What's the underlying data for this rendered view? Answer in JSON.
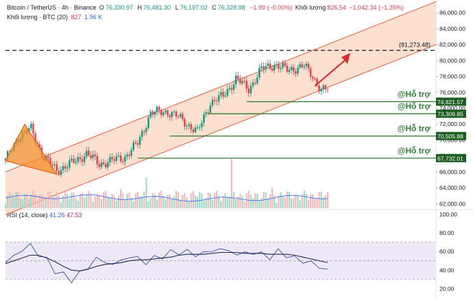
{
  "header": {
    "symbol": "Bitcoin / TetherUS · 4h · Binance",
    "ohlc": {
      "o_label": "O",
      "o": "76,330.97",
      "h_label": "H",
      "h": "76,481.30",
      "l_label": "L",
      "l": "76,197.02",
      "c_label": "C",
      "c": "76,328.98",
      "change": "−1.99 (−0.00%)"
    },
    "volume_label": "Khối lượng",
    "volume_value": "826.54",
    "volume_change": "−1,042.34 (−1.35%)",
    "volume_ma_label": "Khối lượng · BTC (20)",
    "volume_ma_v1": "827",
    "volume_ma_v2": "1.96 K"
  },
  "rsi_legend": {
    "label": "RSI (14, close)",
    "v1": "41.26",
    "v2": "47.53"
  },
  "colors": {
    "up": "#089981",
    "down": "#f23645",
    "channel_fill": "#f9d5c0",
    "channel_line": "#e05a3a",
    "support": "#1b6b1b",
    "triangle": "#f28c28",
    "rsi_line": "#1f3a93",
    "rsi_band": "#ede7f6",
    "arrow": "#d32f2f"
  },
  "chart_data": [
    {
      "type": "candlestick",
      "title": "Bitcoin / TetherUS · 4h · Binance",
      "y_axis_ticks": [
        62000,
        64000,
        66000,
        68000,
        70000,
        72000,
        74000,
        76000,
        78000,
        80000,
        82000,
        84000,
        86000
      ],
      "y_tick_labels": [
        "62,000.00",
        "64,000.00",
        "66,000.00",
        "68,000.00",
        "70,000.00",
        "72,000.00",
        "74,000.00",
        "76,000.00",
        "78,000.00",
        "80,000.00",
        "82,000.00",
        "84,000.00",
        "86,000.00"
      ],
      "ylim": [
        61000,
        87600
      ],
      "n_candles": 152,
      "close_path_anchors": [
        [
          0,
          67400
        ],
        [
          6,
          70400
        ],
        [
          12,
          71400
        ],
        [
          18,
          67800
        ],
        [
          24,
          66200
        ],
        [
          30,
          66900
        ],
        [
          38,
          68300
        ],
        [
          44,
          67000
        ],
        [
          50,
          67400
        ],
        [
          56,
          67900
        ],
        [
          62,
          69600
        ],
        [
          68,
          73400
        ],
        [
          76,
          73600
        ],
        [
          82,
          72700
        ],
        [
          90,
          71000
        ],
        [
          96,
          74700
        ],
        [
          102,
          75500
        ],
        [
          108,
          77700
        ],
        [
          114,
          76400
        ],
        [
          120,
          78900
        ],
        [
          126,
          79500
        ],
        [
          132,
          78800
        ],
        [
          140,
          79300
        ],
        [
          144,
          78000
        ],
        [
          148,
          76300
        ],
        [
          151,
          76330
        ]
      ],
      "current_close": 76328.98,
      "resistance": {
        "value": 81273.48,
        "label": "(81,273.48)"
      },
      "supports": [
        {
          "value": 74821.57,
          "label": "74,821.57",
          "tag": "@Hỗ trợ"
        },
        {
          "value": 73309.85,
          "label": "73,309.85",
          "tag": "@Hỗ trợ"
        },
        {
          "value": 70505.88,
          "label": "70,505.88",
          "tag": "@Hỗ trợ"
        },
        {
          "value": 67732.01,
          "label": "67,732.01",
          "tag": "@Hỗ trợ"
        }
      ],
      "volume_ma_value": 827
    },
    {
      "type": "line",
      "title": "RSI (14, close)",
      "ylim": [
        10,
        105
      ],
      "y_axis_ticks": [
        20,
        40,
        60,
        80,
        100
      ],
      "y_tick_labels": [
        "20.00",
        "40.00",
        "60.00",
        "80.00",
        "100.00"
      ],
      "bands": [
        30,
        50,
        70
      ],
      "series": [
        {
          "values": [
            48,
            55,
            62,
            66,
            58,
            50,
            40,
            34,
            30,
            36,
            44,
            52,
            49,
            46,
            50,
            55,
            52,
            49,
            52,
            56,
            58,
            60,
            59,
            57,
            58,
            61,
            63,
            60,
            58,
            57,
            60,
            56,
            55,
            59,
            57,
            52,
            50,
            48,
            43,
            41
          ]
        },
        {
          "values": [
            47,
            50,
            53,
            56,
            56,
            53,
            49,
            44,
            40,
            39,
            41,
            44,
            46,
            47,
            48,
            50,
            51,
            51,
            52,
            53,
            54,
            56,
            57,
            57,
            57,
            58,
            59,
            59,
            59,
            58,
            58,
            58,
            57,
            57,
            57,
            56,
            54,
            52,
            50,
            48
          ]
        }
      ],
      "last_values": [
        41.26,
        47.53
      ]
    }
  ]
}
